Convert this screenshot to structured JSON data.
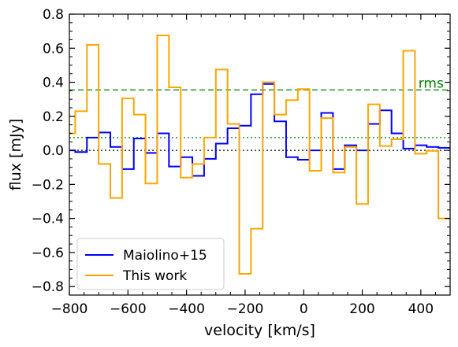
{
  "chart_data": {
    "type": "line",
    "title": "",
    "xlabel": "velocity [km/s]",
    "ylabel": "flux [mJy]",
    "xlim": [
      -800,
      500
    ],
    "ylim": [
      -0.85,
      0.8
    ],
    "xticks": [
      -800,
      -600,
      -400,
      -200,
      0,
      200,
      400
    ],
    "yticks": [
      -0.8,
      -0.6,
      -0.4,
      -0.2,
      0.0,
      0.2,
      0.4,
      0.6,
      0.8
    ],
    "xtick_labels": [
      "−800",
      "−600",
      "−400",
      "−200",
      "0",
      "200",
      "400"
    ],
    "ytick_labels": [
      "−0.8",
      "−0.6",
      "−0.4",
      "−0.2",
      "0.0",
      "0.2",
      "0.4",
      "0.6",
      "0.8"
    ],
    "grid": false,
    "legend_position": "bottom-left",
    "series": [
      {
        "name": "Maiolino+15",
        "color": "#0000ff",
        "style": "steps-mid",
        "x": [
          -800,
          -760,
          -720,
          -680,
          -640,
          -600,
          -560,
          -520,
          -480,
          -440,
          -400,
          -360,
          -320,
          -280,
          -240,
          -200,
          -160,
          -120,
          -80,
          -40,
          0,
          40,
          80,
          120,
          160,
          200,
          240,
          280,
          320,
          360,
          400,
          440,
          480
        ],
        "y": [
          0.0,
          -0.01,
          0.075,
          0.105,
          0.02,
          -0.11,
          0.07,
          -0.015,
          0.1,
          -0.095,
          -0.04,
          -0.15,
          -0.05,
          0.04,
          0.13,
          0.145,
          0.33,
          0.39,
          0.17,
          -0.04,
          -0.055,
          0.0,
          0.22,
          -0.11,
          0.03,
          0.0,
          0.155,
          0.235,
          0.1,
          0.01,
          0.03,
          0.02,
          0.015
        ]
      },
      {
        "name": "This work",
        "color": "#ffa500",
        "style": "steps-mid",
        "x": [
          -800,
          -760,
          -720,
          -680,
          -640,
          -600,
          -560,
          -520,
          -480,
          -440,
          -400,
          -360,
          -320,
          -280,
          -240,
          -200,
          -160,
          -120,
          -80,
          -40,
          0,
          40,
          80,
          120,
          160,
          200,
          240,
          280,
          320,
          360,
          400,
          440,
          480
        ],
        "y": [
          0.1,
          0.23,
          0.62,
          -0.08,
          -0.28,
          0.305,
          0.21,
          -0.195,
          0.675,
          0.37,
          -0.16,
          -0.08,
          0.075,
          0.475,
          0.155,
          -0.725,
          -0.46,
          0.4,
          0.21,
          0.295,
          0.36,
          -0.12,
          0.19,
          -0.13,
          0.02,
          -0.315,
          0.27,
          0.025,
          0.065,
          0.585,
          -0.02,
          -0.003,
          -0.4
        ]
      }
    ],
    "reference_lines": [
      {
        "kind": "rms-high",
        "y": 0.355,
        "color": "#008000",
        "dash": "dashed"
      },
      {
        "kind": "rms-low",
        "y": 0.075,
        "color": "#008000",
        "dash": "dotted"
      },
      {
        "kind": "zero",
        "y": 0.0,
        "color": "#000000",
        "dash": "dotted"
      }
    ],
    "annotations": [
      {
        "text": "rms",
        "x": 370,
        "y": 0.355,
        "color": "#008000"
      }
    ]
  }
}
